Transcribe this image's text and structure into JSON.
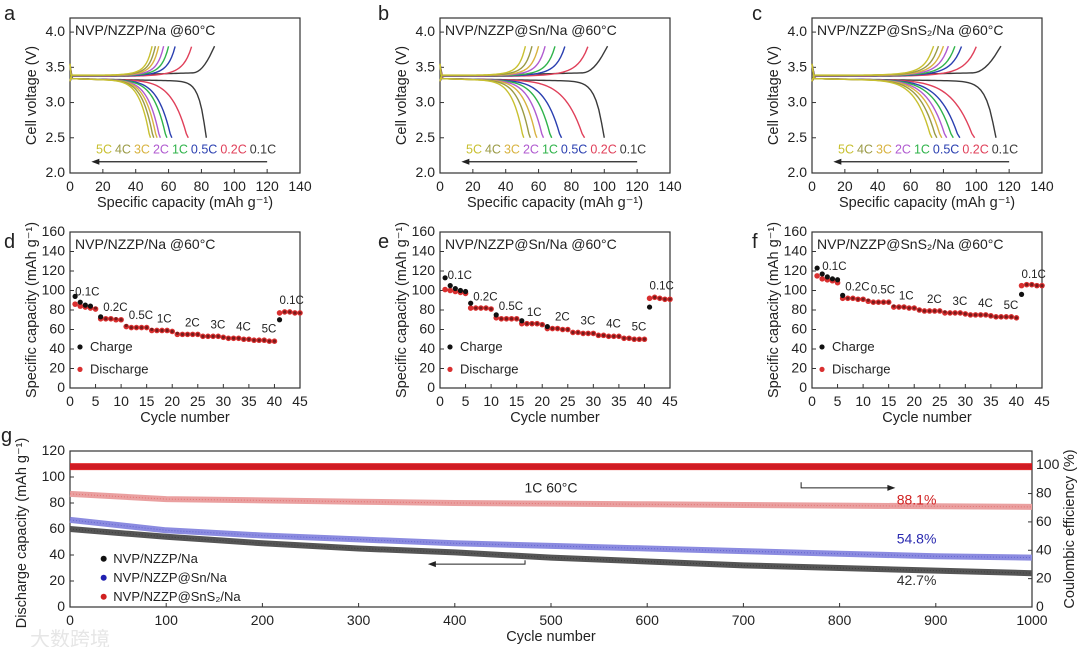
{
  "chart_data": [
    {
      "panel": "a",
      "type": "line",
      "title": "NVP/NZZP/Na @60°C",
      "xlabel": "Specific capacity (mAh g⁻¹)",
      "ylabel": "Cell voltage (V)",
      "xlim": [
        0,
        140
      ],
      "ylim": [
        2.0,
        4.2
      ],
      "xticks": [
        "0",
        "20",
        "40",
        "60",
        "80",
        "100",
        "120",
        "140"
      ],
      "yticks": [
        "2.0",
        "2.5",
        "3.0",
        "3.5",
        "4.0"
      ],
      "curves": [
        {
          "rate": "0.1C",
          "color": "#3a3a3a",
          "charge_end": 88,
          "discharge_end": 83
        },
        {
          "rate": "0.2C",
          "color": "#e0405a",
          "charge_end": 74,
          "discharge_end": 72
        },
        {
          "rate": "0.5C",
          "color": "#2a3fb0",
          "charge_end": 64,
          "discharge_end": 62
        },
        {
          "rate": "1C",
          "color": "#2fb34a",
          "charge_end": 60,
          "discharge_end": 59
        },
        {
          "rate": "2C",
          "color": "#b05ad0",
          "charge_end": 57,
          "discharge_end": 55
        },
        {
          "rate": "3C",
          "color": "#d8b340",
          "charge_end": 54,
          "discharge_end": 53
        },
        {
          "rate": "4C",
          "color": "#9a9a45",
          "charge_end": 52,
          "discharge_end": 51
        },
        {
          "rate": "5C",
          "color": "#c8c030",
          "charge_end": 50,
          "discharge_end": 49
        }
      ]
    },
    {
      "panel": "b",
      "type": "line",
      "title": "NVP/NZZP@Sn/Na @60°C",
      "xlabel": "Specific capacity (mAh g⁻¹)",
      "ylabel": "Cell voltage (V)",
      "xlim": [
        0,
        140
      ],
      "ylim": [
        2.0,
        4.2
      ],
      "xticks": [
        "0",
        "20",
        "40",
        "60",
        "80",
        "100",
        "120",
        "140"
      ],
      "yticks": [
        "2.0",
        "2.5",
        "3.0",
        "3.5",
        "4.0"
      ],
      "curves": [
        {
          "rate": "0.1C",
          "color": "#3a3a3a",
          "charge_end": 102,
          "discharge_end": 100
        },
        {
          "rate": "0.2C",
          "color": "#e0405a",
          "charge_end": 90,
          "discharge_end": 88
        },
        {
          "rate": "0.5C",
          "color": "#2a3fb0",
          "charge_end": 76,
          "discharge_end": 74
        },
        {
          "rate": "1C",
          "color": "#2fb34a",
          "charge_end": 70,
          "discharge_end": 68
        },
        {
          "rate": "2C",
          "color": "#b05ad0",
          "charge_end": 64,
          "discharge_end": 63
        },
        {
          "rate": "3C",
          "color": "#d8b340",
          "charge_end": 60,
          "discharge_end": 59
        },
        {
          "rate": "4C",
          "color": "#9a9a45",
          "charge_end": 56,
          "discharge_end": 55
        },
        {
          "rate": "5C",
          "color": "#c8c030",
          "charge_end": 52,
          "discharge_end": 51
        }
      ]
    },
    {
      "panel": "c",
      "type": "line",
      "title": "NVP/NZZP@SnS₂/Na @60°C",
      "xlabel": "Specific capacity (mAh g⁻¹)",
      "ylabel": "Cell voltage (V)",
      "xlim": [
        0,
        140
      ],
      "ylim": [
        2.0,
        4.2
      ],
      "xticks": [
        "0",
        "20",
        "40",
        "60",
        "80",
        "100",
        "120",
        "140"
      ],
      "yticks": [
        "2.0",
        "2.5",
        "3.0",
        "3.5",
        "4.0"
      ],
      "curves": [
        {
          "rate": "0.1C",
          "color": "#3a3a3a",
          "charge_end": 115,
          "discharge_end": 112
        },
        {
          "rate": "0.2C",
          "color": "#e0405a",
          "charge_end": 100,
          "discharge_end": 99
        },
        {
          "rate": "0.5C",
          "color": "#2a3fb0",
          "charge_end": 91,
          "discharge_end": 90
        },
        {
          "rate": "1C",
          "color": "#2fb34a",
          "charge_end": 87,
          "discharge_end": 86
        },
        {
          "rate": "2C",
          "color": "#b05ad0",
          "charge_end": 83,
          "discharge_end": 82
        },
        {
          "rate": "3C",
          "color": "#d8b340",
          "charge_end": 80,
          "discharge_end": 79
        },
        {
          "rate": "4C",
          "color": "#9a9a45",
          "charge_end": 77,
          "discharge_end": 76
        },
        {
          "rate": "5C",
          "color": "#c8c030",
          "charge_end": 74,
          "discharge_end": 73
        }
      ]
    },
    {
      "panel": "d",
      "type": "scatter",
      "title": "NVP/NZZP/Na @60°C",
      "xlabel": "Cycle number",
      "ylabel": "Specific capacity (mAh g⁻¹)",
      "xlim": [
        0,
        45
      ],
      "ylim": [
        0,
        160
      ],
      "xticks": [
        "0",
        "5",
        "10",
        "15",
        "20",
        "25",
        "30",
        "35",
        "40",
        "45"
      ],
      "yticks": [
        "0",
        "20",
        "40",
        "60",
        "80",
        "100",
        "120",
        "140",
        "160"
      ],
      "legend": [
        {
          "name": "Charge",
          "color": "#111111"
        },
        {
          "name": "Discharge",
          "color": "#d93030"
        }
      ],
      "charge": [
        94,
        88,
        85,
        84,
        82,
        73,
        71,
        71,
        71,
        70,
        64,
        62,
        62,
        62,
        62,
        60,
        59,
        59,
        59,
        58,
        56,
        55,
        55,
        55,
        55,
        53,
        53,
        53,
        53,
        52,
        51,
        51,
        51,
        50,
        50,
        49,
        49,
        49,
        48,
        48,
        70,
        78,
        78,
        77,
        77
      ],
      "discharge": [
        86,
        84,
        83,
        82,
        81,
        71,
        71,
        71,
        70,
        70,
        63,
        62,
        62,
        62,
        62,
        59,
        59,
        59,
        59,
        58,
        55,
        55,
        55,
        55,
        55,
        53,
        53,
        53,
        53,
        52,
        51,
        51,
        51,
        50,
        50,
        49,
        49,
        49,
        48,
        48,
        77,
        78,
        78,
        77,
        77
      ],
      "rate_labels": [
        {
          "text": "0.1C",
          "x": 1,
          "y": 95
        },
        {
          "text": "0.2C",
          "x": 6.5,
          "y": 79
        },
        {
          "text": "0.5C",
          "x": 11.5,
          "y": 71
        },
        {
          "text": "1C",
          "x": 17,
          "y": 67
        },
        {
          "text": "2C",
          "x": 22.5,
          "y": 63
        },
        {
          "text": "3C",
          "x": 27.5,
          "y": 61
        },
        {
          "text": "4C",
          "x": 32.5,
          "y": 59
        },
        {
          "text": "5C",
          "x": 37.5,
          "y": 57
        },
        {
          "text": "0.1C",
          "x": 41,
          "y": 86
        }
      ]
    },
    {
      "panel": "e",
      "type": "scatter",
      "title": "NVP/NZZP@Sn/Na @60°C",
      "xlabel": "Cycle number",
      "ylabel": "Specific capacity (mAh g⁻¹)",
      "xlim": [
        0,
        45
      ],
      "ylim": [
        0,
        160
      ],
      "xticks": [
        "0",
        "5",
        "10",
        "15",
        "20",
        "25",
        "30",
        "35",
        "40",
        "45"
      ],
      "yticks": [
        "0",
        "20",
        "40",
        "60",
        "80",
        "100",
        "120",
        "140",
        "160"
      ],
      "legend": [
        {
          "name": "Charge",
          "color": "#111111"
        },
        {
          "name": "Discharge",
          "color": "#d93030"
        }
      ],
      "charge": [
        113,
        105,
        102,
        100,
        99,
        87,
        82,
        82,
        82,
        81,
        75,
        71,
        71,
        71,
        71,
        69,
        66,
        66,
        66,
        65,
        63,
        61,
        61,
        60,
        60,
        57,
        57,
        56,
        56,
        56,
        54,
        54,
        53,
        53,
        53,
        51,
        51,
        50,
        50,
        50,
        83,
        93,
        92,
        91,
        91
      ],
      "discharge": [
        101,
        100,
        99,
        98,
        97,
        82,
        82,
        82,
        82,
        81,
        72,
        71,
        71,
        71,
        71,
        66,
        66,
        66,
        66,
        65,
        61,
        61,
        61,
        60,
        60,
        57,
        57,
        56,
        56,
        56,
        54,
        54,
        53,
        53,
        53,
        51,
        51,
        50,
        50,
        50,
        92,
        93,
        92,
        91,
        91
      ],
      "rate_labels": [
        {
          "text": "0.1C",
          "x": 1.5,
          "y": 112
        },
        {
          "text": "0.2C",
          "x": 6.5,
          "y": 90
        },
        {
          "text": "0.5C",
          "x": 11.5,
          "y": 80
        },
        {
          "text": "1C",
          "x": 17,
          "y": 74
        },
        {
          "text": "2C",
          "x": 22.5,
          "y": 69
        },
        {
          "text": "3C",
          "x": 27.5,
          "y": 65
        },
        {
          "text": "4C",
          "x": 32.5,
          "y": 62
        },
        {
          "text": "5C",
          "x": 37.5,
          "y": 59
        },
        {
          "text": "0.1C",
          "x": 41,
          "y": 101
        }
      ]
    },
    {
      "panel": "f",
      "type": "scatter",
      "title": "NVP/NZZP@SnS₂/Na @60°C",
      "xlabel": "Cycle number",
      "ylabel": "Specific capacity (mAh g⁻¹)",
      "xlim": [
        0,
        45
      ],
      "ylim": [
        0,
        160
      ],
      "xticks": [
        "0",
        "5",
        "10",
        "15",
        "20",
        "25",
        "30",
        "35",
        "40",
        "45"
      ],
      "yticks": [
        "0",
        "20",
        "40",
        "60",
        "80",
        "100",
        "120",
        "140",
        "160"
      ],
      "legend": [
        {
          "name": "Charge",
          "color": "#111111"
        },
        {
          "name": "Discharge",
          "color": "#d93030"
        }
      ],
      "charge": [
        123,
        117,
        114,
        112,
        111,
        95,
        92,
        92,
        91,
        91,
        90,
        88,
        88,
        88,
        88,
        84,
        83,
        83,
        82,
        82,
        80,
        79,
        79,
        79,
        79,
        78,
        77,
        77,
        77,
        76,
        75,
        75,
        75,
        75,
        74,
        73,
        73,
        73,
        73,
        72,
        96,
        106,
        106,
        105,
        105
      ],
      "discharge": [
        115,
        112,
        111,
        110,
        108,
        92,
        92,
        92,
        91,
        91,
        89,
        88,
        88,
        88,
        88,
        83,
        83,
        83,
        82,
        82,
        80,
        79,
        79,
        79,
        79,
        77,
        77,
        77,
        77,
        76,
        75,
        75,
        75,
        75,
        74,
        73,
        73,
        73,
        73,
        72,
        105,
        106,
        106,
        105,
        105
      ],
      "rate_labels": [
        {
          "text": "0.1C",
          "x": 2,
          "y": 121
        },
        {
          "text": "0.2C",
          "x": 6.5,
          "y": 100
        },
        {
          "text": "0.5C",
          "x": 11.5,
          "y": 97
        },
        {
          "text": "1C",
          "x": 17,
          "y": 91
        },
        {
          "text": "2C",
          "x": 22.5,
          "y": 87
        },
        {
          "text": "3C",
          "x": 27.5,
          "y": 85
        },
        {
          "text": "4C",
          "x": 32.5,
          "y": 83
        },
        {
          "text": "5C",
          "x": 37.5,
          "y": 81
        },
        {
          "text": "0.1C",
          "x": 41,
          "y": 113
        }
      ]
    },
    {
      "panel": "g",
      "type": "line",
      "xlabel": "Cycle number",
      "ylabel": "Discharge capacity (mAh g⁻¹)",
      "ylabel_right": "Coulombic efficiency (%)",
      "xlim": [
        0,
        1000
      ],
      "ylim": [
        0,
        120
      ],
      "ylim_right": [
        0,
        110
      ],
      "xticks": [
        "0",
        "100",
        "200",
        "300",
        "400",
        "500",
        "600",
        "700",
        "800",
        "900",
        "1000"
      ],
      "yticks": [
        "0",
        "20",
        "40",
        "60",
        "80",
        "100",
        "120"
      ],
      "yticks_right": [
        "0",
        "20",
        "40",
        "60",
        "80",
        "100"
      ],
      "condition_label": "1C 60°C",
      "cycles": [
        0,
        100,
        200,
        300,
        400,
        500,
        600,
        700,
        800,
        900,
        1000
      ],
      "series": [
        {
          "name": "NVP/NZZP/Na",
          "color": "#555555",
          "marker": "#111111",
          "capacity": [
            60,
            54,
            49,
            45,
            42,
            38,
            35,
            32,
            30,
            28,
            26
          ],
          "retention": "42.7%",
          "ce": 99
        },
        {
          "name": "NVP/NZZP@Sn/Na",
          "color": "#8b8be0",
          "marker": "#2020b0",
          "capacity": [
            67,
            59,
            55,
            52,
            49,
            47,
            45,
            43,
            41,
            39,
            38
          ],
          "retention": "54.8%",
          "ce": 99
        },
        {
          "name": "NVP/NZZP@SnS₂/Na",
          "color": "#eaa0a0",
          "marker": "#d02020",
          "capacity": [
            87,
            83,
            82,
            81,
            80,
            79.5,
            79,
            78.5,
            78,
            77.5,
            77
          ],
          "retention": "88.1%",
          "ce": 99
        }
      ]
    }
  ],
  "watermark": "大数跨境"
}
